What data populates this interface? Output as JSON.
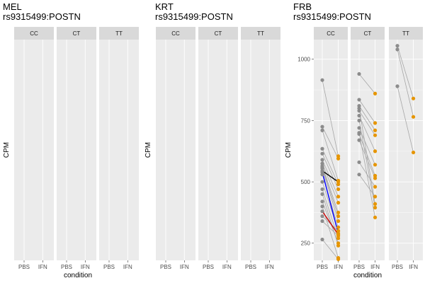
{
  "colors": {
    "panel_bg": "#ebebeb",
    "strip_bg": "#d9d9d9",
    "grid": "#ffffff",
    "point_pbs": "#8c8c8c",
    "point_ifn": "#e69500",
    "line_default": "#a6a6a6",
    "highlight_black": "#000000",
    "highlight_blue": "#0000ff",
    "highlight_red": "#cc0000"
  },
  "chart_data": [
    {
      "type": "scatter",
      "title_line1": "MEL",
      "title_line2": "rs9315499:POSTN",
      "xlabel": "condition",
      "ylabel": "CPM",
      "facets": [
        "CC",
        "CT",
        "TT"
      ],
      "categories": [
        "PBS",
        "IFN"
      ],
      "y_ticks": [],
      "pairs": {
        "CC": [],
        "CT": [],
        "TT": []
      }
    },
    {
      "type": "scatter",
      "title_line1": "KRT",
      "title_line2": "rs9315499:POSTN",
      "xlabel": "",
      "ylabel": "CPM",
      "facets": [
        "CC",
        "CT",
        "TT"
      ],
      "categories": [
        "PBS",
        "IFN"
      ],
      "y_ticks": [],
      "pairs": {
        "CC": [],
        "CT": [],
        "TT": []
      }
    },
    {
      "type": "scatter",
      "title_line1": "FRB",
      "title_line2": "rs9315499:POSTN",
      "xlabel": "condition",
      "ylabel": "CPM",
      "facets": [
        "CC",
        "CT",
        "TT"
      ],
      "categories": [
        "PBS",
        "IFN"
      ],
      "ylim": [
        180,
        1080
      ],
      "y_ticks": [
        250,
        500,
        750,
        1000
      ],
      "pairs": {
        "CC": [
          [
            915,
            605
          ],
          [
            725,
            595
          ],
          [
            710,
            505
          ],
          [
            635,
            490
          ],
          [
            615,
            470
          ],
          [
            590,
            440
          ],
          [
            575,
            415
          ],
          [
            565,
            375
          ],
          [
            560,
            360
          ],
          [
            555,
            340
          ],
          [
            545,
            500,
            "black"
          ],
          [
            540,
            290,
            "blue"
          ],
          [
            530,
            315
          ],
          [
            500,
            300
          ],
          [
            470,
            270
          ],
          [
            450,
            240
          ],
          [
            420,
            250
          ],
          [
            400,
            190
          ],
          [
            380,
            285,
            "red"
          ],
          [
            360,
            300
          ],
          [
            340,
            280
          ],
          [
            265,
            185
          ]
        ],
        "CT": [
          [
            940,
            860
          ],
          [
            835,
            740
          ],
          [
            810,
            710
          ],
          [
            790,
            690
          ],
          [
            770,
            625
          ],
          [
            720,
            570
          ],
          [
            695,
            525
          ],
          [
            670,
            515
          ],
          [
            580,
            480
          ],
          [
            530,
            440
          ],
          [
            800,
            410
          ],
          [
            750,
            395
          ],
          [
            700,
            355
          ]
        ],
        "TT": [
          [
            1055,
            840
          ],
          [
            1040,
            765
          ],
          [
            890,
            620
          ]
        ]
      }
    }
  ]
}
